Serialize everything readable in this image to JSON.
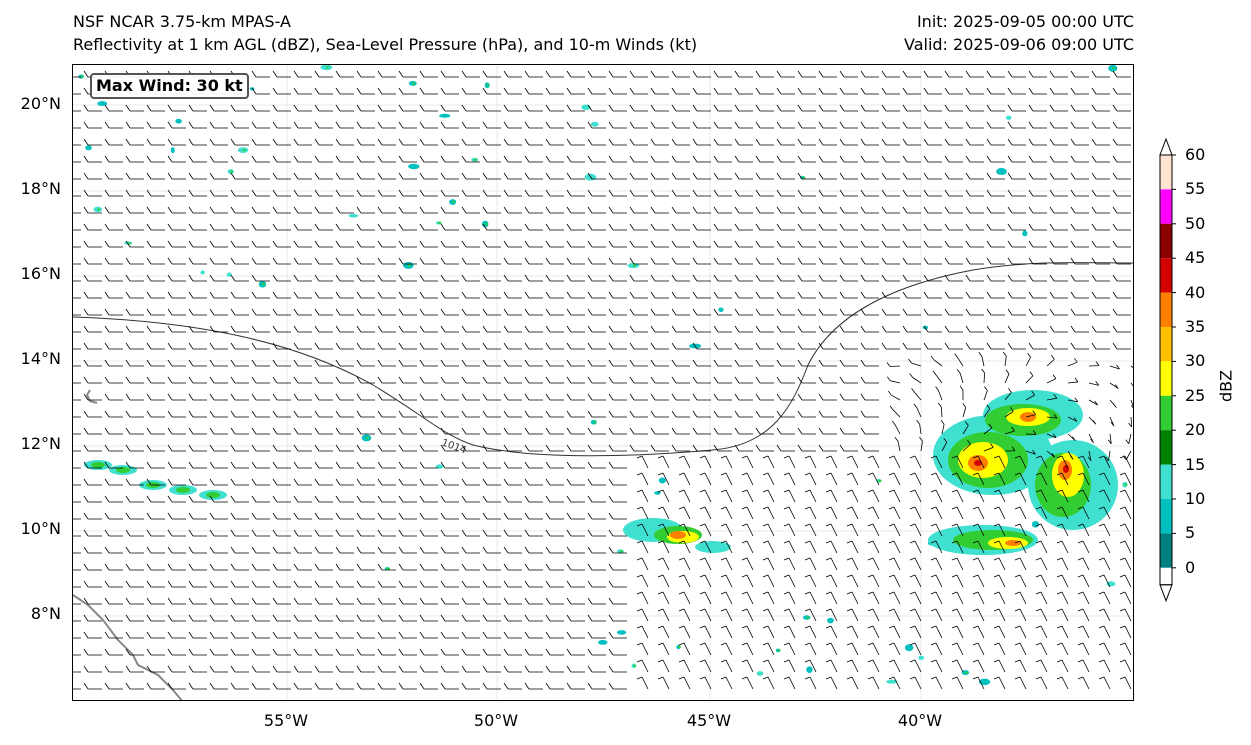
{
  "header": {
    "title_line1": "NSF NCAR 3.75-km MPAS-A",
    "title_line2": "Reflectivity at 1 km AGL (dBZ), Sea-Level Pressure (hPa), and 10-m Winds (kt)",
    "init": "Init: 2025-09-05 00:00 UTC",
    "valid": "Valid: 2025-09-06 09:00 UTC"
  },
  "map": {
    "max_wind_label": "Max Wind: 30 kt",
    "isobar_label": "1014",
    "lat_labels": [
      "20°N",
      "18°N",
      "16°N",
      "14°N",
      "12°N",
      "10°N",
      "8°N"
    ],
    "lon_labels": [
      "55°W",
      "50°W",
      "45°W",
      "40°W"
    ],
    "colors": {
      "coast": "#888888",
      "isobar": "#333333",
      "barb": "#000000"
    }
  },
  "colorbar": {
    "label": "dBZ",
    "ticks": [
      "60",
      "55",
      "50",
      "45",
      "40",
      "35",
      "30",
      "25",
      "20",
      "15",
      "10",
      "5",
      "0"
    ],
    "colors": [
      "#ffe4d2",
      "#ff00ff",
      "#8b0000",
      "#d40000",
      "#ff8000",
      "#ffc000",
      "#ffff00",
      "#32cd32",
      "#008000",
      "#40e0d0",
      "#00c0c0",
      "#008080"
    ]
  }
}
